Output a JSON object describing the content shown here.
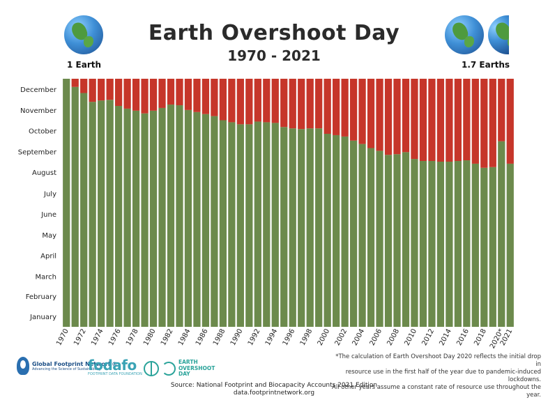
{
  "header": {
    "title": "Earth Overshoot Day",
    "subtitle": "1970 - 2021",
    "left_label": "1 Earth",
    "right_label": "1.7 Earths"
  },
  "chart_data": {
    "type": "bar",
    "stacked": true,
    "colors": {
      "before_overshoot": "#6c8a4c",
      "after_overshoot": "#c6362a"
    },
    "months": [
      "January",
      "February",
      "March",
      "April",
      "May",
      "June",
      "July",
      "August",
      "September",
      "October",
      "November",
      "December"
    ],
    "x_tick_labels": [
      "1970",
      "1972",
      "1974",
      "1976",
      "1978",
      "1980",
      "1982",
      "1984",
      "1986",
      "1988",
      "1990",
      "1992",
      "1994",
      "1996",
      "1998",
      "2000",
      "2002",
      "2004",
      "2006",
      "2008",
      "2010",
      "2012",
      "2014",
      "2016",
      "2018",
      "2020*",
      "2021"
    ],
    "categories": [
      "1970",
      "1971",
      "1972",
      "1973",
      "1974",
      "1975",
      "1976",
      "1977",
      "1978",
      "1979",
      "1980",
      "1981",
      "1982",
      "1983",
      "1984",
      "1985",
      "1986",
      "1987",
      "1988",
      "1989",
      "1990",
      "1991",
      "1992",
      "1993",
      "1994",
      "1995",
      "1996",
      "1997",
      "1998",
      "1999",
      "2000",
      "2001",
      "2002",
      "2003",
      "2004",
      "2005",
      "2006",
      "2007",
      "2008",
      "2009",
      "2010",
      "2011",
      "2012",
      "2013",
      "2014",
      "2015",
      "2016",
      "2017",
      "2018",
      "2019",
      "2020",
      "2021"
    ],
    "overshoot_day_of_year": [
      365,
      353,
      344,
      331,
      333,
      334,
      325,
      321,
      318,
      314,
      318,
      322,
      327,
      326,
      319,
      316,
      313,
      310,
      304,
      301,
      298,
      298,
      302,
      301,
      300,
      294,
      292,
      291,
      292,
      292,
      284,
      282,
      280,
      274,
      269,
      263,
      259,
      253,
      254,
      257,
      247,
      244,
      244,
      243,
      243,
      244,
      245,
      240,
      234,
      235,
      273,
      240
    ],
    "series": [
      {
        "name": "before overshoot",
        "values": [
          365,
          353,
          344,
          331,
          333,
          334,
          325,
          321,
          318,
          314,
          318,
          322,
          327,
          326,
          319,
          316,
          313,
          310,
          304,
          301,
          298,
          298,
          302,
          301,
          300,
          294,
          292,
          291,
          292,
          292,
          284,
          282,
          280,
          274,
          269,
          263,
          259,
          253,
          254,
          257,
          247,
          244,
          244,
          243,
          243,
          244,
          245,
          240,
          234,
          235,
          273,
          240
        ]
      },
      {
        "name": "after overshoot",
        "values": [
          0,
          12,
          21,
          34,
          32,
          31,
          40,
          44,
          47,
          51,
          47,
          43,
          38,
          39,
          46,
          49,
          52,
          55,
          61,
          64,
          67,
          67,
          63,
          64,
          65,
          71,
          73,
          74,
          73,
          73,
          81,
          83,
          85,
          91,
          96,
          102,
          106,
          112,
          111,
          108,
          118,
          121,
          121,
          122,
          122,
          121,
          120,
          125,
          131,
          130,
          92,
          125
        ]
      }
    ],
    "ylim": [
      0,
      365
    ],
    "grid": false
  },
  "footer": {
    "footnote_1": "*The calculation of Earth Overshoot Day 2020 reflects the initial drop in",
    "footnote_2": "resource use in the first half of the year due to pandemic-induced lockdowns.",
    "footnote_3": "All other years assume a constant rate of resource use throughout the year.",
    "source": "Source: National Footprint and Biocapacity Accounts 2021 Edition",
    "url": "data.footprintnetwork.org",
    "logo_gfn_name": "Global Footprint Network®",
    "logo_gfn_tagline": "Advancing the Science of Sustainability",
    "logo_foda_name": "fodafo",
    "logo_foda_tagline": "FOOTPRINT DATA FOUNDATION",
    "logo_eod_line1": "EARTH",
    "logo_eod_line2": "OVERSHOOT",
    "logo_eod_line3": "DAY"
  }
}
